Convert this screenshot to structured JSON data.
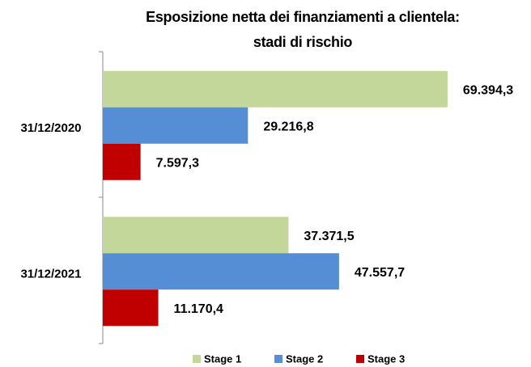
{
  "chart_data": {
    "type": "hbar",
    "title": [
      "Esposizione netta dei finanziamenti a clientela:",
      "stadi di rischio"
    ],
    "categories": [
      "31/12/2020",
      "31/12/2021"
    ],
    "series": [
      {
        "name": "Stage 1",
        "color": "#c4d79b",
        "values": [
          69394.3,
          37371.5
        ],
        "value_labels": [
          "69.394,3",
          "37.371,5"
        ]
      },
      {
        "name": "Stage 2",
        "color": "#558ed5",
        "values": [
          29216.8,
          47557.7
        ],
        "value_labels": [
          "29.216,8",
          "47.557,7"
        ]
      },
      {
        "name": "Stage 3",
        "color": "#c00000",
        "values": [
          7597.3,
          11170.4
        ],
        "value_labels": [
          "7.597,3",
          "11.170,4"
        ]
      }
    ],
    "xlim": [
      0,
      80000
    ],
    "legend": "bottom"
  }
}
